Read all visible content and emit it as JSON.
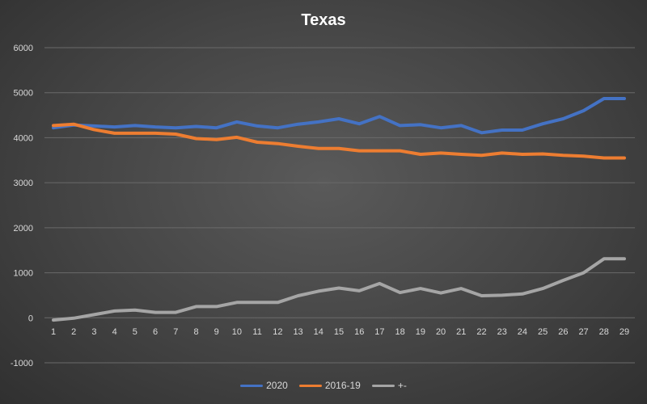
{
  "chart_data": {
    "type": "line",
    "title": "Texas",
    "xlabel": "",
    "ylabel": "",
    "x": [
      1,
      2,
      3,
      4,
      5,
      6,
      7,
      8,
      9,
      10,
      11,
      12,
      13,
      14,
      15,
      16,
      17,
      18,
      19,
      20,
      21,
      22,
      23,
      24,
      25,
      26,
      27,
      28,
      29
    ],
    "ylim": [
      -1000,
      6000
    ],
    "yticks": [
      -1000,
      0,
      1000,
      2000,
      3000,
      4000,
      5000,
      6000
    ],
    "grid": true,
    "legend_position": "bottom",
    "series": [
      {
        "name": "2020",
        "color": "#4472c4",
        "values": [
          4220,
          4280,
          4260,
          4240,
          4270,
          4240,
          4220,
          4250,
          4220,
          4350,
          4260,
          4220,
          4300,
          4350,
          4420,
          4310,
          4470,
          4270,
          4290,
          4220,
          4270,
          4110,
          4170,
          4170,
          4310,
          4420,
          4600,
          4870,
          4870
        ]
      },
      {
        "name": "2016-19",
        "color": "#ed7d31",
        "values": [
          4270,
          4300,
          4180,
          4100,
          4100,
          4100,
          4080,
          3980,
          3960,
          4010,
          3900,
          3870,
          3810,
          3760,
          3760,
          3710,
          3710,
          3710,
          3630,
          3660,
          3630,
          3610,
          3660,
          3630,
          3640,
          3610,
          3590,
          3550,
          3550
        ]
      },
      {
        "name": "+-",
        "color": "#a5a5a5",
        "values": [
          -50,
          -10,
          70,
          150,
          170,
          120,
          120,
          250,
          250,
          340,
          340,
          340,
          490,
          590,
          660,
          600,
          760,
          560,
          650,
          550,
          650,
          490,
          500,
          530,
          650,
          830,
          1000,
          1310,
          1310
        ]
      }
    ]
  }
}
